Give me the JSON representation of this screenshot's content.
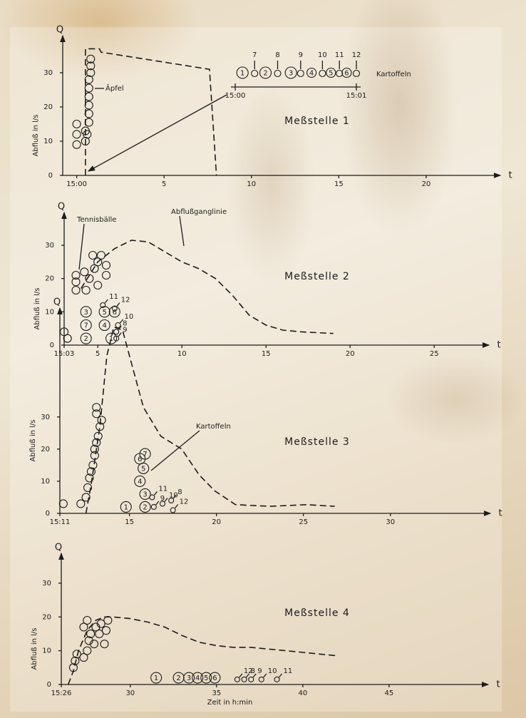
{
  "chart_data": [
    {
      "type": "line",
      "title": "Meßstelle 1",
      "y_symbol": "Q",
      "x_symbol": "t",
      "ylabel": "Abfluß in l/s",
      "xlim": [
        -0.8,
        24
      ],
      "xticks": [
        {
          "value": 0,
          "label": "15:00"
        },
        5,
        10,
        15,
        20
      ],
      "ylim": [
        0,
        40
      ],
      "yticks": [
        0,
        10,
        20,
        30
      ],
      "series": [
        {
          "color": "#1c1c1c",
          "x": [
            0.5,
            0.5,
            1.3,
            1.4,
            7.6,
            8.0
          ],
          "values": [
            0,
            37,
            37,
            36,
            31,
            0
          ]
        }
      ],
      "balls": {
        "x": [
          0,
          0,
          0,
          0.5,
          0.5,
          0.8,
          0.8,
          0.8,
          0.7,
          0.7,
          0.7,
          0.7,
          0.7,
          0.7,
          0.6
        ],
        "values": [
          15,
          12,
          9,
          13,
          10,
          34,
          32,
          30,
          28,
          25.5,
          23,
          20.5,
          18,
          15.5,
          12
        ]
      },
      "annotations": [
        {
          "text": "Äpfel"
        }
      ],
      "inset": {
        "title": "Kartoffeln",
        "xticks": [
          {
            "value": 0,
            "label": "15:00"
          },
          {
            "value": 1,
            "label": "15:01"
          }
        ],
        "numbered": {
          "x": [
            0.06,
            0.25,
            0.46,
            0.63,
            0.79,
            0.92
          ],
          "labels": [
            "1",
            "2",
            "3",
            "4",
            "5",
            "6"
          ]
        },
        "tagged": {
          "x": [
            0.16,
            0.35,
            0.54,
            0.72,
            0.86,
            1.0
          ],
          "labels": [
            "7",
            "8",
            "9",
            "10",
            "11",
            "12"
          ]
        }
      }
    },
    {
      "type": "line",
      "title": "Meßstelle 2",
      "y_symbol": "Q",
      "x_symbol": "t",
      "ylabel": "Abfluß in l/s",
      "xlim": [
        3,
        28
      ],
      "xticks": [
        {
          "value": 3,
          "label": "15:03"
        },
        5,
        10,
        15,
        20,
        25
      ],
      "ylim": [
        0,
        39
      ],
      "yticks": [
        0,
        10,
        20,
        30
      ],
      "series": [
        {
          "color": "#1c1c1c",
          "x": [
            4,
            5,
            6,
            7,
            8,
            9,
            10,
            11,
            12,
            13,
            14,
            15,
            16,
            17,
            19
          ],
          "values": [
            17,
            25,
            29,
            31.5,
            31,
            28,
            25,
            23,
            20,
            15,
            9,
            6,
            4.5,
            4,
            3.5
          ]
        }
      ],
      "balls": {
        "x": [
          3.7,
          3.7,
          3.7,
          4.2,
          4.5,
          4.8,
          5.0,
          5.2,
          5.5,
          5.0,
          4.3,
          5.5,
          4.7,
          3.0,
          3.2
        ],
        "values": [
          21,
          19,
          16.5,
          22,
          20,
          23,
          25,
          27,
          24,
          18,
          16.5,
          21,
          27,
          4,
          2
        ]
      },
      "numbered": {
        "x": [
          4.3,
          5.8,
          4.3,
          5.4,
          5.4,
          6.0,
          4.3
        ],
        "values": [
          2,
          2,
          10,
          6,
          10,
          10,
          6
        ],
        "labels": [
          "2",
          "1",
          "3",
          "4",
          "5",
          "6",
          "7"
        ]
      },
      "tagged": {
        "x": [
          5.3,
          6.0,
          6.2,
          6.1,
          6.1
        ],
        "values": [
          12,
          11,
          6,
          4,
          2
        ],
        "labels": [
          "11",
          "12",
          "10",
          "8",
          "9"
        ]
      },
      "annotations": [
        {
          "text": "Tennisbälle"
        },
        {
          "text": "Abflußganglinie"
        }
      ]
    },
    {
      "type": "line",
      "title": "Meßstelle 3",
      "y_symbol": "Q",
      "x_symbol": "t",
      "ylabel": "Abfluß in l/s",
      "xlim": [
        11,
        35.5
      ],
      "xticks": [
        {
          "value": 11,
          "label": "15:11"
        },
        15,
        20,
        25,
        30
      ],
      "ylim": [
        0,
        63
      ],
      "yticks": [
        0,
        10,
        20,
        30
      ],
      "series": [
        {
          "color": "#1c1c1c",
          "x": [
            12.5,
            12.8,
            13.3,
            13.7,
            14.1,
            14.6,
            15.1,
            15.8,
            16.8,
            18,
            19,
            19.9,
            21.1,
            23.1,
            25.2,
            26.8
          ],
          "values": [
            0,
            9,
            27,
            49,
            58,
            57,
            47,
            33,
            24,
            20,
            12,
            7,
            2.7,
            2.2,
            2.7,
            2.2
          ]
        }
      ],
      "balls": {
        "x": [
          11.2,
          12.2,
          12.5,
          12.6,
          12.7,
          12.8,
          12.9,
          13.0,
          13.0,
          13.1,
          13.2,
          13.3,
          13.4,
          13.1,
          13.1
        ],
        "values": [
          3,
          3,
          5,
          8,
          11,
          13,
          15,
          18,
          20,
          22,
          24,
          27,
          29,
          31,
          33
        ]
      },
      "numbered": {
        "x": [
          14.8,
          15.9,
          15.9,
          15.6,
          15.8,
          15.6,
          15.9
        ],
        "values": [
          2,
          2,
          6,
          10,
          14,
          17,
          18.5
        ],
        "labels": [
          "1",
          "2",
          "3",
          "4",
          "5",
          "6",
          "7"
        ]
      },
      "tagged": {
        "x": [
          16.3,
          16.4,
          16.9,
          17.4,
          17.5
        ],
        "values": [
          5,
          2,
          3,
          4,
          1
        ],
        "labels": [
          "11",
          "9",
          "10",
          "8",
          "12"
        ]
      },
      "annotations": [
        {
          "text": "Kartoffeln"
        }
      ]
    },
    {
      "type": "line",
      "title": "Meßstelle 4",
      "y_symbol": "Q",
      "x_symbol": "t",
      "ylabel": "Abfluß in l/s",
      "xlabel": "Zeit in h:min",
      "xlim": [
        26,
        50.5
      ],
      "xticks": [
        {
          "value": 26,
          "label": "15:26"
        },
        30,
        35,
        40,
        45
      ],
      "ylim": [
        0,
        38
      ],
      "yticks": [
        0,
        10,
        20,
        30
      ],
      "series": [
        {
          "color": "#1c1c1c",
          "x": [
            26.4,
            26.7,
            27,
            27.5,
            28,
            28.5,
            29,
            30,
            31,
            32,
            33,
            34,
            35,
            36,
            37,
            38,
            39,
            40,
            41,
            42
          ],
          "values": [
            0,
            4,
            10,
            16,
            19,
            20,
            20,
            19.5,
            18.5,
            17,
            14.5,
            12.5,
            11.5,
            11,
            11,
            10.5,
            10,
            9.5,
            9,
            8.5
          ]
        }
      ],
      "balls": {
        "x": [
          26.7,
          26.8,
          26.9,
          27.3,
          27.5,
          27.6,
          27.7,
          27.9,
          28.0,
          28.2,
          28.3,
          28.5,
          28.6,
          28.7,
          27.3,
          27.5
        ],
        "values": [
          5,
          7,
          9,
          8,
          10,
          13,
          15,
          12,
          17,
          15,
          18,
          12,
          16,
          19,
          17,
          19
        ]
      },
      "numbered": {
        "x": [
          31.5,
          32.8,
          33.4,
          33.9,
          34.4,
          34.9
        ],
        "values": [
          2,
          2,
          2,
          2,
          2,
          2
        ],
        "labels": [
          "1",
          "2",
          "3",
          "4",
          "5",
          "6"
        ]
      },
      "tagged": {
        "x": [
          36.2,
          36.6,
          37.0,
          37.6,
          38.5
        ],
        "values": [
          1.5,
          1.5,
          1.5,
          1.5,
          1.5
        ],
        "labels": [
          "12",
          "8",
          "9",
          "10",
          "11"
        ]
      }
    }
  ]
}
